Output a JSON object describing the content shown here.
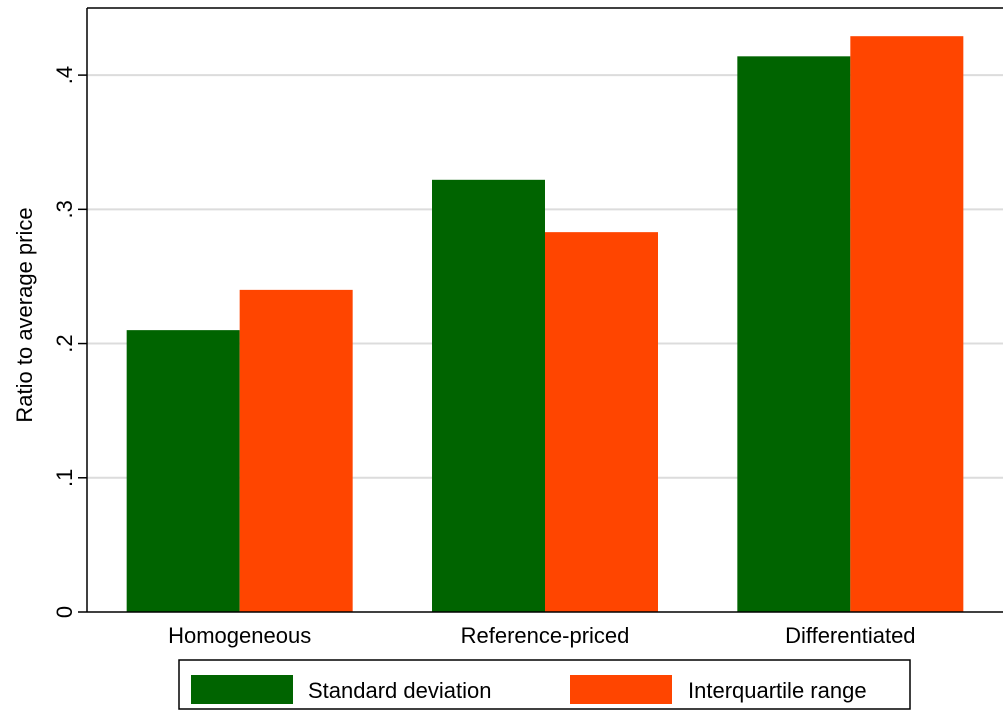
{
  "chart_data": {
    "type": "bar",
    "categories": [
      "Homogeneous",
      "Reference-priced",
      "Differentiated"
    ],
    "series": [
      {
        "name": "Standard deviation",
        "values": [
          0.21,
          0.322,
          0.414
        ],
        "color": "#006400"
      },
      {
        "name": "Interquartile range",
        "values": [
          0.24,
          0.283,
          0.429
        ],
        "color": "#ff4500"
      }
    ],
    "title": "",
    "xlabel": "",
    "ylabel": "Ratio to average price",
    "ylim": [
      0,
      0.45
    ],
    "yticks": [
      0,
      0.1,
      0.2,
      0.3,
      0.4
    ],
    "ytick_labels": [
      "0",
      ".1",
      ".2",
      ".3",
      ".4"
    ],
    "grid": true,
    "legend_position": "bottom"
  }
}
